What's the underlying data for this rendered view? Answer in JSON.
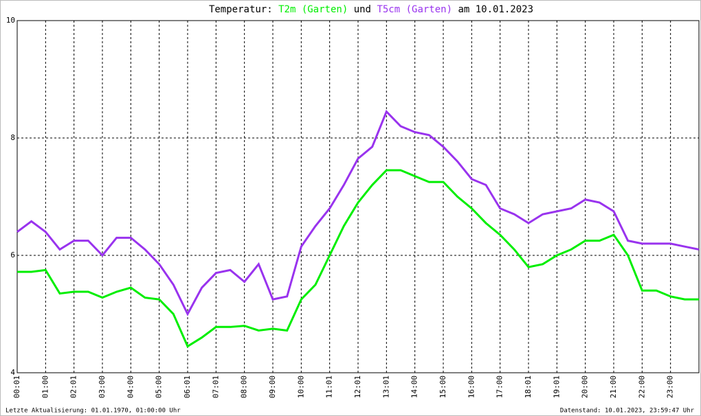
{
  "chart_data": {
    "type": "line",
    "title": "Temperatur:",
    "title_joiner": "und",
    "title_suffix": "am 10.01.2023",
    "xlim": [
      0,
      24
    ],
    "xticks": [
      {
        "value": 0,
        "label": "00:01"
      },
      {
        "value": 1,
        "label": "01:00"
      },
      {
        "value": 2,
        "label": "02:01"
      },
      {
        "value": 3,
        "label": "03:00"
      },
      {
        "value": 4,
        "label": "04:00"
      },
      {
        "value": 5,
        "label": "05:00"
      },
      {
        "value": 6,
        "label": "06:01"
      },
      {
        "value": 7,
        "label": "07:01"
      },
      {
        "value": 8,
        "label": "08:00"
      },
      {
        "value": 9,
        "label": "09:00"
      },
      {
        "value": 10,
        "label": "10:00"
      },
      {
        "value": 11,
        "label": "11:01"
      },
      {
        "value": 12,
        "label": "12:01"
      },
      {
        "value": 13,
        "label": "13:01"
      },
      {
        "value": 14,
        "label": "14:00"
      },
      {
        "value": 15,
        "label": "15:00"
      },
      {
        "value": 16,
        "label": "16:00"
      },
      {
        "value": 17,
        "label": "17:00"
      },
      {
        "value": 18,
        "label": "18:01"
      },
      {
        "value": 19,
        "label": "19:01"
      },
      {
        "value": 20,
        "label": "20:00"
      },
      {
        "value": 21,
        "label": "21:00"
      },
      {
        "value": 22,
        "label": "22:00"
      },
      {
        "value": 23,
        "label": "23:00"
      }
    ],
    "ylim": [
      4,
      10
    ],
    "yticks": [
      4,
      6,
      8,
      10
    ],
    "grid": true,
    "x": [
      0,
      0.5,
      1,
      1.5,
      2,
      2.5,
      3,
      3.5,
      4,
      4.5,
      5,
      5.5,
      6,
      6.5,
      7,
      7.5,
      8,
      8.5,
      9,
      9.5,
      10,
      10.5,
      11,
      11.5,
      12,
      12.5,
      13,
      13.5,
      14,
      14.5,
      15,
      15.5,
      16,
      16.5,
      17,
      17.5,
      18,
      18.5,
      19,
      19.5,
      20,
      20.5,
      21,
      21.5,
      22,
      22.5,
      23,
      23.5,
      24
    ],
    "series": [
      {
        "name": "T2m (Garten)",
        "color": "#00ee00",
        "values": [
          5.72,
          5.72,
          5.75,
          5.35,
          5.38,
          5.38,
          5.28,
          5.38,
          5.45,
          5.28,
          5.25,
          5.0,
          4.45,
          4.6,
          4.78,
          4.78,
          4.8,
          4.72,
          4.75,
          4.72,
          5.25,
          5.5,
          6.0,
          6.5,
          6.9,
          7.2,
          7.45,
          7.45,
          7.35,
          7.25,
          7.25,
          7.0,
          6.8,
          6.55,
          6.35,
          6.1,
          5.8,
          5.85,
          6.0,
          6.1,
          6.25,
          6.25,
          6.35,
          6.0,
          5.4,
          5.4,
          5.3,
          5.25,
          5.25
        ]
      },
      {
        "name": "T5cm (Garten)",
        "color": "#9933ee",
        "values": [
          6.4,
          6.58,
          6.4,
          6.1,
          6.25,
          6.25,
          6.0,
          6.3,
          6.3,
          6.1,
          5.85,
          5.5,
          5.0,
          5.45,
          5.7,
          5.75,
          5.55,
          5.85,
          5.25,
          5.3,
          6.15,
          6.5,
          6.8,
          7.2,
          7.65,
          7.85,
          8.45,
          8.2,
          8.1,
          8.05,
          7.85,
          7.6,
          7.3,
          7.2,
          6.8,
          6.7,
          6.55,
          6.7,
          6.75,
          6.8,
          6.95,
          6.9,
          6.75,
          6.25,
          6.2,
          6.2,
          6.2,
          6.15,
          6.1
        ]
      }
    ]
  },
  "footer": {
    "left": "Letzte Aktualisierung: 01.01.1970, 01:00:00 Uhr",
    "right": "Datenstand: 10.01.2023, 23:59:47 Uhr"
  }
}
